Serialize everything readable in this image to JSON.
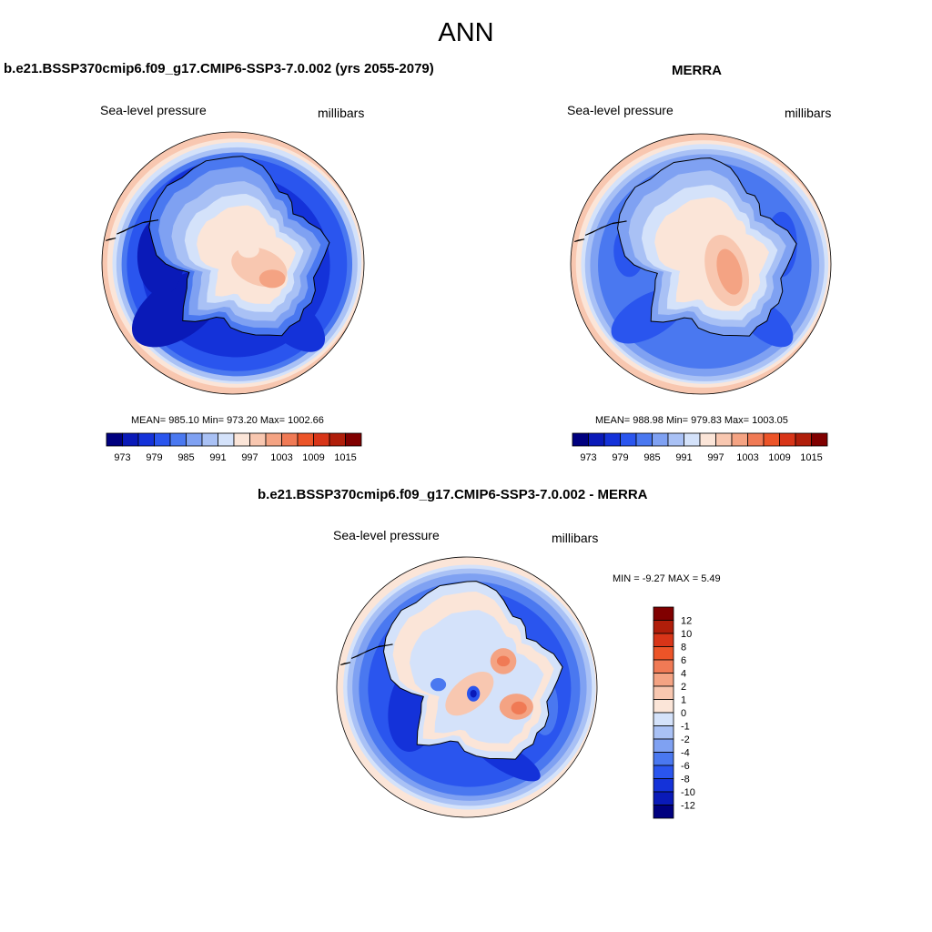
{
  "main_title": "ANN",
  "colors": {
    "land_outline": "#000000",
    "palette": [
      "#00007f",
      "#0a1ab8",
      "#1432d9",
      "#2a55ee",
      "#4a78f0",
      "#7fa1f2",
      "#a9c1f5",
      "#d4e2fa",
      "#fbe5d8",
      "#f8c7b0",
      "#f4a383",
      "#f07a55",
      "#ec5428",
      "#d83518",
      "#b01e0a",
      "#800000"
    ]
  },
  "panels": [
    {
      "title": "b.e21.BSSP370cmip6.f09_g17.CMIP6-SSP3-7.0.002 (yrs 2055-2079)",
      "left_label": "Sea-level pressure",
      "right_label": "millibars",
      "stats": {
        "mean": "985.10",
        "min": "973.20",
        "max": "1002.66",
        "text": "MEAN= 985.10  Min= 973.20  Max= 1002.66"
      }
    },
    {
      "title": "MERRA",
      "left_label": "Sea-level pressure",
      "right_label": "millibars",
      "stats": {
        "mean": "988.98",
        "min": "979.83",
        "max": "1003.05",
        "text": "MEAN= 988.98  Min= 979.83  Max= 1003.05"
      }
    },
    {
      "title": "b.e21.BSSP370cmip6.f09_g17.CMIP6-SSP3-7.0.002 - MERRA",
      "left_label": "Sea-level pressure",
      "right_label": "millibars",
      "stats": {
        "min": "-9.27",
        "max": "5.49",
        "text": "MIN =  -9.27 MAX =   5.49"
      }
    }
  ],
  "chart_data": [
    {
      "type": "heatmap",
      "title": "b.e21.BSSP370cmip6.f09_g17.CMIP6-SSP3-7.0.002 (yrs 2055-2079)",
      "variable": "Sea-level pressure",
      "units": "millibars",
      "projection": "south polar stereographic",
      "mean": 985.1,
      "min": 973.2,
      "max": 1002.66,
      "colorbar_ticks": [
        "973",
        "979",
        "985",
        "991",
        "997",
        "1003",
        "1009",
        "1015"
      ],
      "contour_levels": [
        973,
        976,
        979,
        982,
        985,
        988,
        991,
        994,
        997,
        1000,
        1003,
        1006,
        1009,
        1012,
        1015
      ]
    },
    {
      "type": "heatmap",
      "title": "MERRA",
      "variable": "Sea-level pressure",
      "units": "millibars",
      "projection": "south polar stereographic",
      "mean": 988.98,
      "min": 979.83,
      "max": 1003.05,
      "colorbar_ticks": [
        "973",
        "979",
        "985",
        "991",
        "997",
        "1003",
        "1009",
        "1015"
      ],
      "contour_levels": [
        973,
        976,
        979,
        982,
        985,
        988,
        991,
        994,
        997,
        1000,
        1003,
        1006,
        1009,
        1012,
        1015
      ]
    },
    {
      "type": "heatmap",
      "title": "b.e21.BSSP370cmip6.f09_g17.CMIP6-SSP3-7.0.002 - MERRA",
      "variable": "Sea-level pressure",
      "units": "millibars",
      "projection": "south polar stereographic",
      "min": -9.27,
      "max": 5.49,
      "colorbar_ticks": [
        "12",
        "10",
        "8",
        "6",
        "4",
        "2",
        "1",
        "0",
        "-1",
        "-2",
        "-4",
        "-6",
        "-8",
        "-10",
        "-12"
      ],
      "contour_levels": [
        -12,
        -10,
        -8,
        -6,
        -4,
        -2,
        -1,
        0,
        1,
        2,
        4,
        6,
        8,
        10,
        12
      ]
    }
  ]
}
